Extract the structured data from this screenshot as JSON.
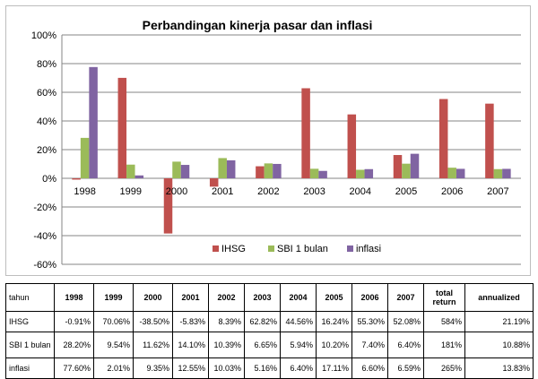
{
  "chart_data": {
    "type": "bar",
    "title": "Perbandingan kinerja pasar dan inflasi",
    "xlabel": "",
    "ylabel": "",
    "categories": [
      "1998",
      "1999",
      "2000",
      "2001",
      "2002",
      "2003",
      "2004",
      "2005",
      "2006",
      "2007"
    ],
    "series": [
      {
        "name": "IHSG",
        "color": "#c0504d",
        "values": [
          -0.91,
          70.06,
          -38.5,
          -5.83,
          8.39,
          62.82,
          44.56,
          16.24,
          55.3,
          52.08
        ]
      },
      {
        "name": "SBI 1 bulan",
        "color": "#9bbb59",
        "values": [
          28.2,
          9.54,
          11.62,
          14.1,
          10.39,
          6.65,
          5.94,
          10.2,
          7.4,
          6.4
        ]
      },
      {
        "name": "inflasi",
        "color": "#8064a2",
        "values": [
          77.6,
          2.01,
          9.35,
          12.55,
          10.03,
          5.16,
          6.4,
          17.11,
          6.6,
          6.59
        ]
      }
    ],
    "ylim": [
      -60,
      100
    ],
    "yticks": [
      -60,
      -40,
      -20,
      0,
      20,
      40,
      60,
      80,
      100
    ],
    "ytick_labels": [
      "-60%",
      "-40%",
      "-20%",
      "0%",
      "20%",
      "40%",
      "60%",
      "80%",
      "100%"
    ],
    "grid": true,
    "legend_position": "bottom"
  },
  "table": {
    "headers": [
      "tahun",
      "1998",
      "1999",
      "2000",
      "2001",
      "2002",
      "2003",
      "2004",
      "2005",
      "2006",
      "2007",
      "total return",
      "annualized"
    ],
    "rows": [
      {
        "label": "IHSG",
        "cells": [
          "-0.91%",
          "70.06%",
          "-38.50%",
          "-5.83%",
          "8.39%",
          "62.82%",
          "44.56%",
          "16.24%",
          "55.30%",
          "52.08%",
          "584%",
          "21.19%"
        ]
      },
      {
        "label": "SBI 1 bulan",
        "cells": [
          "28.20%",
          "9.54%",
          "11.62%",
          "14.10%",
          "10.39%",
          "6.65%",
          "5.94%",
          "10.20%",
          "7.40%",
          "6.40%",
          "181%",
          "10.88%"
        ]
      },
      {
        "label": "inflasi",
        "cells": [
          "77.60%",
          "2.01%",
          "9.35%",
          "12.55%",
          "10.03%",
          "5.16%",
          "6.40%",
          "17.11%",
          "6.60%",
          "6.59%",
          "265%",
          "13.83%"
        ]
      }
    ]
  }
}
